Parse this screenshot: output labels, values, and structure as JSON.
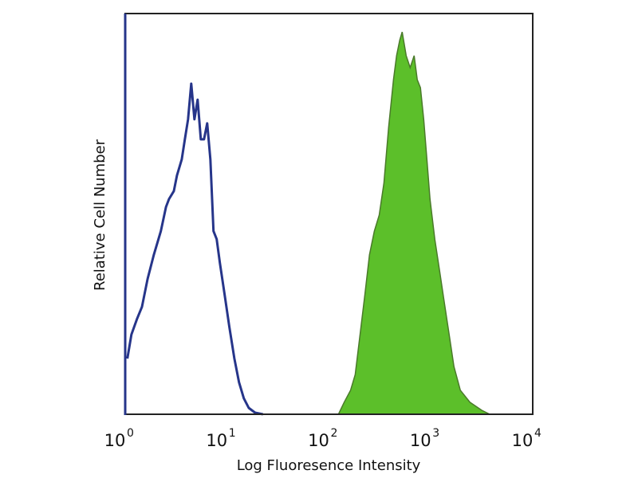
{
  "chart_data": {
    "type": "area",
    "xlabel": "Log Fluoresence Intensity",
    "ylabel": "Relative Cell Number",
    "xscale": "log",
    "xlim": [
      1,
      10000
    ],
    "ylim": [
      0,
      100
    ],
    "grid": false,
    "x_tick_labels": [
      {
        "base": "10",
        "exp": "0"
      },
      {
        "base": "10",
        "exp": "1"
      },
      {
        "base": "10",
        "exp": "2"
      },
      {
        "base": "10",
        "exp": "3"
      },
      {
        "base": "10",
        "exp": "4"
      }
    ],
    "series": [
      {
        "style": "line",
        "color": "#26358a",
        "x": [
          1.05,
          1.15,
          1.31,
          1.46,
          1.66,
          1.91,
          2.24,
          2.51,
          2.69,
          3.0,
          3.22,
          3.59,
          3.85,
          4.14,
          4.45,
          4.78,
          5.14,
          5.52,
          5.93,
          6.38,
          6.85,
          7.36,
          7.91,
          8.5,
          9.47,
          10.5,
          11.8,
          13.1,
          14.6,
          16.3,
          18.8,
          22.5
        ],
        "y": [
          13.9,
          19.9,
          23.9,
          26.8,
          33.8,
          39.8,
          45.7,
          51.7,
          53.7,
          55.7,
          59.6,
          63.6,
          68.6,
          73.6,
          82.5,
          73.6,
          78.5,
          68.6,
          68.6,
          72.6,
          63.6,
          45.7,
          43.7,
          37.8,
          29.8,
          21.9,
          13.9,
          8.0,
          4.0,
          1.6,
          0.4,
          0
        ]
      },
      {
        "style": "filled",
        "color": "#5cbf2a",
        "edge_color": "#4a7a2a",
        "x": [
          124,
          141,
          163,
          181,
          202,
          225,
          250,
          279,
          311,
          346,
          385,
          430,
          461,
          496,
          523,
          572,
          626,
          685,
          736,
          791,
          851,
          914,
          982,
          1094,
          1219,
          1358,
          1513,
          1685,
          1945,
          2415,
          3162,
          3787
        ],
        "y": [
          0,
          3.0,
          6.0,
          9.9,
          19.9,
          29.8,
          39.8,
          45.7,
          49.7,
          57.7,
          71.6,
          83.5,
          89.5,
          93.4,
          95.4,
          89.5,
          86.5,
          89.5,
          83.5,
          81.5,
          73.6,
          63.6,
          53.7,
          43.7,
          35.8,
          27.8,
          19.9,
          11.9,
          6.0,
          3.0,
          1.0,
          0
        ]
      }
    ]
  }
}
